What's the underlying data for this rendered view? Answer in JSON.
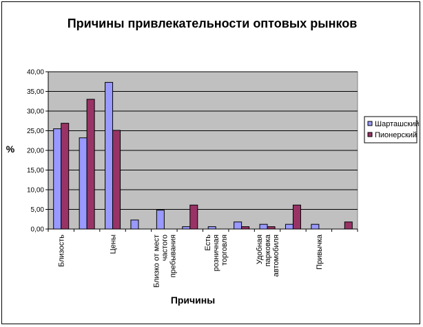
{
  "chart_data": {
    "type": "bar",
    "title": "Причины привлекательности оптовых рынков",
    "xlabel": "Причины",
    "ylabel": "%",
    "ylim": [
      0,
      40
    ],
    "yticks": [
      "0,00",
      "5,00",
      "10,00",
      "15,00",
      "20,00",
      "25,00",
      "30,00",
      "35,00",
      "40,00"
    ],
    "grid": true,
    "legend_position": "right",
    "categories": [
      [
        "Близость"
      ],
      [
        ""
      ],
      [
        "Цены"
      ],
      [
        ""
      ],
      [
        "Близко от мест",
        "частого",
        "пребывания"
      ],
      [
        ""
      ],
      [
        "Есть",
        "розничная",
        "торговля"
      ],
      [
        ""
      ],
      [
        "Удобная",
        "парковка",
        "автомобиля"
      ],
      [
        ""
      ],
      [
        "Привычка"
      ],
      [
        ""
      ]
    ],
    "series": [
      {
        "name": "Шарташский",
        "color": "#9999FF",
        "values": [
          25.5,
          23.2,
          37.3,
          2.3,
          4.8,
          0.6,
          0.6,
          1.8,
          1.2,
          1.2,
          1.2,
          0
        ]
      },
      {
        "name": "Пионерский",
        "color": "#993366",
        "values": [
          26.9,
          33.0,
          25.1,
          0,
          0,
          6.1,
          0,
          0.6,
          0.6,
          6.1,
          0,
          1.8
        ]
      }
    ],
    "plot_background": "#C0C0C0"
  }
}
